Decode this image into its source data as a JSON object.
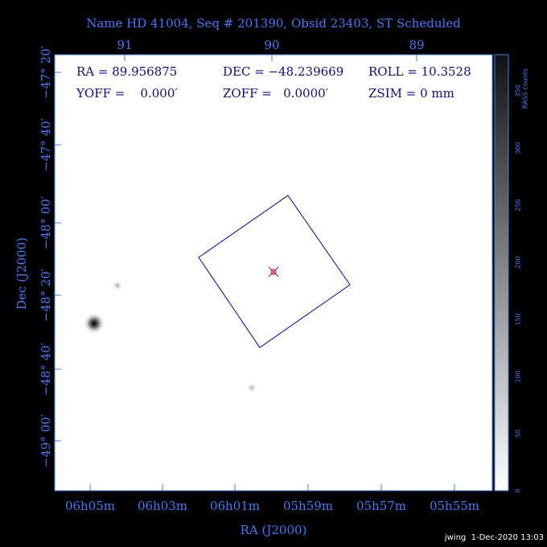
{
  "title": "Name HD 41004, Seq # 201390, Obsid 23403, ST Scheduled",
  "top_axis": {
    "labels": [
      "91",
      "90",
      "89"
    ]
  },
  "bottom_axis": {
    "labels": [
      "06h05m",
      "06h03m",
      "06h01m",
      "05h59m",
      "05h57m",
      "05h55m"
    ],
    "title": "RA (J2000)"
  },
  "left_axis": {
    "labels": [
      "−47° 20′",
      "−47° 40′",
      "−48° 00′",
      "−48° 20′",
      "−48° 40′",
      "−49° 00′"
    ],
    "title": "Dec (J2000)"
  },
  "colorbar": {
    "labels": [
      "0",
      "50",
      "100",
      "150",
      "200",
      "250",
      "300",
      "350"
    ],
    "title": "RASS counts"
  },
  "info": {
    "rows": [
      [
        "RA = 89.956875",
        "DEC = −48.239669",
        "ROLL = 10.3528"
      ],
      [
        "YOFF =    0.000′",
        "ZOFF =   0.0000′",
        "ZSIM = 0 mm"
      ]
    ]
  },
  "footer": "jwing  1-Dec-2020 13:03"
}
